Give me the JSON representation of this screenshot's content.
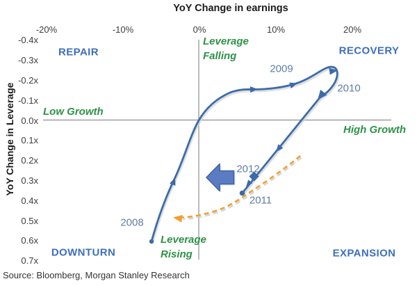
{
  "title": "YoY Change in earnings",
  "y_axis_title": "YoY Change in Leverage",
  "source": "Source: Bloomberg, Morgan Stanley Research",
  "quadrants": {
    "top_left": "REPAIR",
    "top_right": "RECOVERY",
    "bottom_left": "DOWNTURN",
    "bottom_right": "EXPANSION"
  },
  "phase_labels": {
    "leverage_falling": "Leverage\nFalling",
    "leverage_rising": "Leverage\nRising",
    "low_growth": "Low Growth",
    "high_growth": "High Growth"
  },
  "year_labels": {
    "y2008": "2008",
    "y2009": "2009",
    "y2010": "2010",
    "y2011": "2011",
    "y2012": "2012"
  },
  "colors": {
    "curve_blue": "#3B6CA8",
    "quadrant_blue": "#3E6EBE",
    "year_blue_gray": "#5E7DA6",
    "phase_green": "#2E9148",
    "expected_path_orange": "#F0A02F",
    "block_arrow_fill": "#5B7CC2",
    "block_arrow_stroke": "#3D63AD",
    "axis_gray": "#8e8e8e"
  },
  "chart_data": {
    "type": "line",
    "title": "YoY Change in earnings",
    "xlabel": "YoY Change in earnings",
    "ylabel": "YoY Change in Leverage",
    "x_axis": {
      "tick_labels": [
        "-20%",
        "-10%",
        "0%",
        "10%",
        "20%"
      ],
      "tick_values": [
        -20,
        -10,
        0,
        10,
        20
      ],
      "range": [
        -20,
        20
      ],
      "position": "top"
    },
    "y_axis": {
      "tick_labels": [
        "-0.4x",
        "-0.3x",
        "-0.2x",
        "-0.1x",
        "0.0x",
        "0.1x",
        "0.2x",
        "0.3x",
        "0.4x",
        "0.5x",
        "0.6x",
        "0.7x"
      ],
      "tick_values": [
        -0.4,
        -0.3,
        -0.2,
        -0.1,
        0.0,
        0.1,
        0.2,
        0.3,
        0.4,
        0.5,
        0.6,
        0.7
      ],
      "range": [
        -0.4,
        0.7
      ],
      "inverted": true
    },
    "grid": false,
    "series": [
      {
        "name": "Earnings/leverage cycle path",
        "style": "solid blue curve with direction arrows",
        "points": [
          {
            "year": 2008,
            "earnings_yoy_pct": -6,
            "leverage_yoy_x": 0.61,
            "marker": "dot"
          },
          {
            "year": 2009,
            "earnings_yoy_pct": 13,
            "leverage_yoy_x": -0.18,
            "marker": "none"
          },
          {
            "year": 2010,
            "earnings_yoy_pct": 18,
            "leverage_yoy_x": -0.25,
            "marker": "none"
          },
          {
            "year": 2011,
            "earnings_yoy_pct": 5.5,
            "leverage_yoy_x": 0.37,
            "marker": "dot"
          },
          {
            "year": 2012,
            "earnings_yoy_pct": 7,
            "leverage_yoy_x": 0.28,
            "marker": "diamond"
          }
        ]
      },
      {
        "name": "Expected path",
        "style": "orange dashed arrow sweeping left from ~(13%, 0.18x) to ~(-3%, 0.49x)",
        "points": [
          {
            "earnings_yoy_pct": 13,
            "leverage_yoy_x": 0.18
          },
          {
            "earnings_yoy_pct": 7,
            "leverage_yoy_x": 0.3
          },
          {
            "earnings_yoy_pct": 2,
            "leverage_yoy_x": 0.44
          },
          {
            "earnings_yoy_pct": -3,
            "leverage_yoy_x": 0.49
          }
        ]
      }
    ],
    "annotations": {
      "quadrants": [
        "REPAIR",
        "RECOVERY",
        "DOWNTURN",
        "EXPANSION"
      ],
      "phases": [
        "Leverage Falling",
        "Low Growth",
        "High Growth",
        "Leverage Rising"
      ],
      "block_arrow": "large blue arrow pointing left near 2012 point"
    },
    "legend": "none"
  }
}
